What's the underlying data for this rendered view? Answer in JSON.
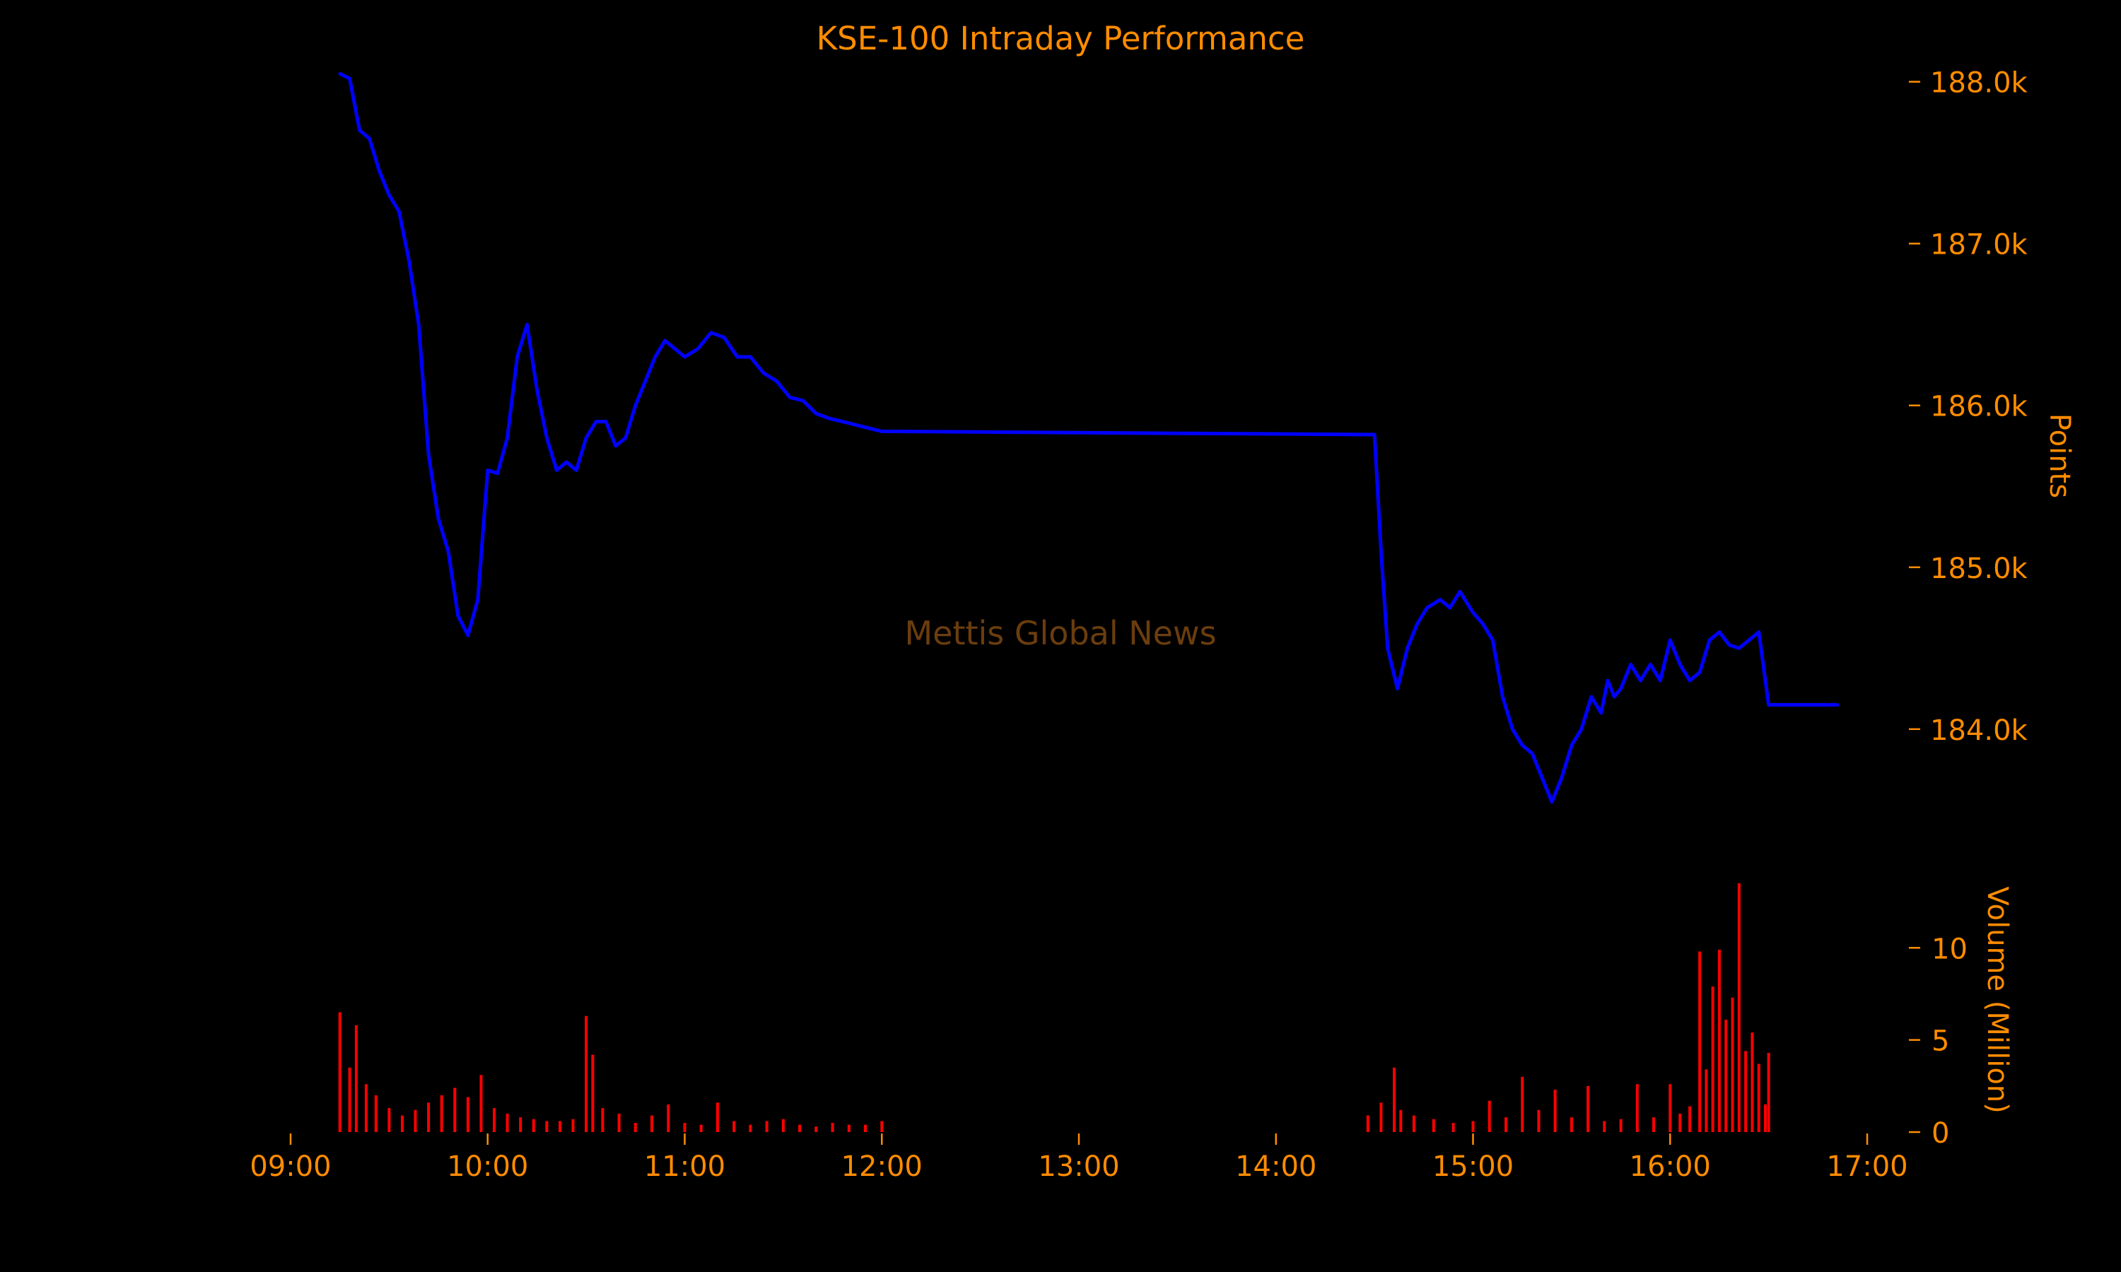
{
  "colors": {
    "background": "#000000",
    "text": "#ff8c00",
    "index_line": "#0000ff",
    "volume_bars": "#ff0000",
    "watermark": "#6b3d0e"
  },
  "watermark": "Mettis Global News",
  "chart_data": [
    {
      "type": "line",
      "title": "KSE-100 Intraday Performance",
      "ylabel": "Points",
      "y_axis_side": "right",
      "ylim": [
        183200,
        188300
      ],
      "yticks": [
        184000,
        185000,
        186000,
        187000,
        188000
      ],
      "ytick_labels": [
        "184.0k",
        "185.0k",
        "186.0k",
        "187.0k",
        "188.0k"
      ],
      "grid": false,
      "series": [
        {
          "x": [
            "09:15",
            "09:18",
            "09:21",
            "09:24",
            "09:27",
            "09:30",
            "09:33",
            "09:36",
            "09:39",
            "09:42",
            "09:45",
            "09:48",
            "09:51",
            "09:54",
            "09:57",
            "10:00",
            "10:03",
            "10:06",
            "10:09",
            "10:12",
            "10:15",
            "10:18",
            "10:21",
            "10:24",
            "10:27",
            "10:30",
            "10:33",
            "10:36",
            "10:39",
            "10:42",
            "10:45",
            "10:48",
            "10:51",
            "10:54",
            "10:57",
            "11:00",
            "11:04",
            "11:08",
            "11:12",
            "11:16",
            "11:20",
            "11:24",
            "11:28",
            "11:32",
            "11:36",
            "11:40",
            "11:44",
            "11:48",
            "11:52",
            "11:56",
            "12:00",
            "14:30",
            "14:32",
            "14:34",
            "14:37",
            "14:40",
            "14:43",
            "14:46",
            "14:50",
            "14:53",
            "14:56",
            "15:00",
            "15:03",
            "15:06",
            "15:09",
            "15:12",
            "15:15",
            "15:18",
            "15:21",
            "15:24",
            "15:27",
            "15:30",
            "15:33",
            "15:36",
            "15:39",
            "15:41",
            "15:43",
            "15:45",
            "15:48",
            "15:51",
            "15:54",
            "15:57",
            "16:00",
            "16:03",
            "16:06",
            "16:09",
            "16:12",
            "16:15",
            "16:18",
            "16:21",
            "16:24",
            "16:27",
            "16:29",
            "16:30",
            "16:36",
            "16:42",
            "16:51"
          ],
          "y": [
            188050,
            188020,
            187700,
            187650,
            187450,
            187300,
            187200,
            186900,
            186500,
            185700,
            185300,
            185100,
            184700,
            184580,
            184800,
            185600,
            185580,
            185800,
            186300,
            186500,
            186100,
            185800,
            185600,
            185650,
            185600,
            185800,
            185900,
            185900,
            185750,
            185800,
            186000,
            186150,
            186300,
            186400,
            186350,
            186300,
            186350,
            186450,
            186420,
            186300,
            186300,
            186200,
            186150,
            186050,
            186030,
            185950,
            185920,
            185900,
            185880,
            185860,
            185840,
            185820,
            185100,
            184500,
            184250,
            184500,
            184650,
            184750,
            184800,
            184750,
            184850,
            184720,
            184650,
            184550,
            184200,
            184000,
            183900,
            183850,
            183700,
            183550,
            183700,
            183900,
            184000,
            184200,
            184100,
            184300,
            184200,
            184250,
            184400,
            184300,
            184400,
            184300,
            184550,
            184400,
            184300,
            184350,
            184550,
            184600,
            184520,
            184500,
            184550,
            184600,
            184300,
            184150,
            184150,
            184150,
            184150
          ]
        }
      ]
    },
    {
      "type": "bar",
      "ylabel": "Volume (Million)",
      "y_axis_side": "right",
      "ylim": [
        0,
        13.5
      ],
      "yticks": [
        0,
        5,
        10
      ],
      "ytick_labels": [
        "0",
        "5",
        "10"
      ],
      "xlim": [
        "09:00",
        "17:00"
      ],
      "xticks": [
        "09:00",
        "10:00",
        "11:00",
        "12:00",
        "13:00",
        "14:00",
        "15:00",
        "16:00",
        "17:00"
      ],
      "grid": false,
      "x": [
        "09:15",
        "09:18",
        "09:20",
        "09:23",
        "09:26",
        "09:30",
        "09:34",
        "09:38",
        "09:42",
        "09:46",
        "09:50",
        "09:54",
        "09:58",
        "10:02",
        "10:06",
        "10:10",
        "10:14",
        "10:18",
        "10:22",
        "10:26",
        "10:30",
        "10:32",
        "10:35",
        "10:40",
        "10:45",
        "10:50",
        "10:55",
        "11:00",
        "11:05",
        "11:10",
        "11:15",
        "11:20",
        "11:25",
        "11:30",
        "11:35",
        "11:40",
        "11:45",
        "11:50",
        "11:55",
        "12:00",
        "14:28",
        "14:32",
        "14:36",
        "14:38",
        "14:42",
        "14:48",
        "14:54",
        "15:00",
        "15:05",
        "15:10",
        "15:15",
        "15:20",
        "15:25",
        "15:30",
        "15:35",
        "15:40",
        "15:45",
        "15:50",
        "15:55",
        "16:00",
        "16:03",
        "16:06",
        "16:09",
        "16:11",
        "16:13",
        "16:15",
        "16:17",
        "16:19",
        "16:21",
        "16:23",
        "16:25",
        "16:27",
        "16:29",
        "16:30"
      ],
      "values": [
        6.5,
        3.5,
        5.8,
        2.6,
        2.0,
        1.3,
        0.9,
        1.2,
        1.6,
        2.0,
        2.4,
        1.9,
        3.1,
        1.3,
        1.0,
        0.8,
        0.7,
        0.6,
        0.6,
        0.7,
        6.3,
        4.2,
        1.3,
        1.0,
        0.5,
        0.9,
        1.5,
        0.5,
        0.4,
        1.6,
        0.6,
        0.4,
        0.6,
        0.7,
        0.4,
        0.3,
        0.5,
        0.4,
        0.4,
        0.6,
        0.9,
        1.6,
        3.5,
        1.2,
        0.9,
        0.7,
        0.5,
        0.6,
        1.7,
        0.8,
        3.0,
        1.2,
        2.3,
        0.8,
        2.5,
        0.6,
        0.7,
        2.6,
        0.8,
        2.6,
        1.0,
        1.4,
        9.8,
        3.4,
        7.9,
        9.9,
        6.1,
        7.3,
        13.5,
        4.4,
        5.4,
        3.7,
        1.5,
        4.3
      ]
    }
  ]
}
